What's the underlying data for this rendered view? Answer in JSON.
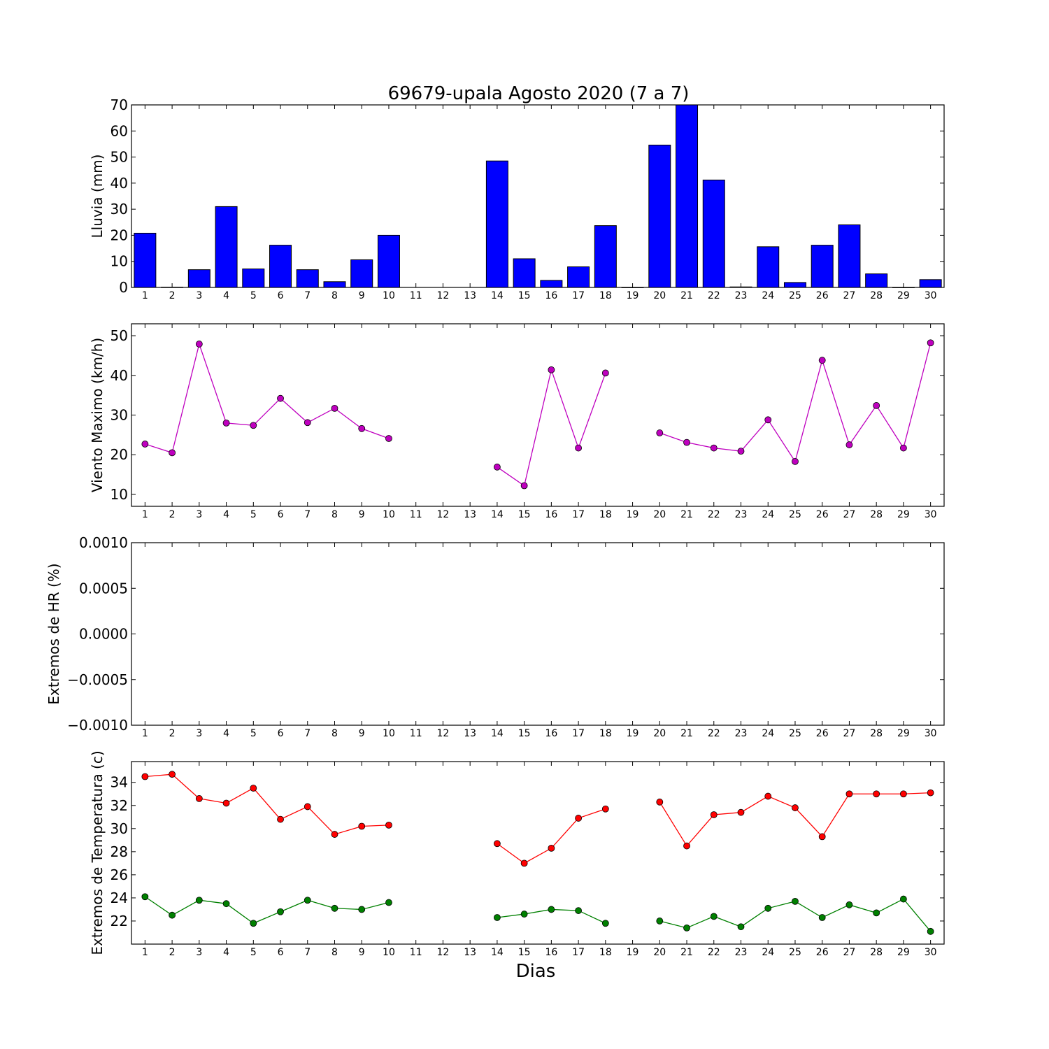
{
  "chart_data": [
    {
      "type": "bar",
      "title": "69679-upala Agosto 2020  (7 a 7)",
      "ylabel": "Lluvia (mm)",
      "xlabel": "",
      "color": "#0000ff",
      "ylim": [
        0,
        70
      ],
      "yticks": [
        "0",
        "10",
        "20",
        "30",
        "40",
        "50",
        "60",
        "70"
      ],
      "x": [
        1,
        2,
        3,
        4,
        5,
        6,
        7,
        8,
        9,
        10,
        11,
        12,
        13,
        14,
        15,
        16,
        17,
        18,
        19,
        20,
        21,
        22,
        23,
        24,
        25,
        26,
        27,
        28,
        29,
        30
      ],
      "values": [
        20.8,
        0.1,
        6.8,
        31.0,
        7.1,
        16.2,
        6.8,
        2.2,
        10.6,
        20.0,
        null,
        null,
        null,
        48.5,
        11.0,
        2.7,
        7.9,
        23.7,
        0.0,
        54.6,
        70.0,
        41.2,
        0.2,
        15.6,
        1.9,
        16.2,
        24.0,
        5.2,
        0.0,
        3.0
      ]
    },
    {
      "type": "line",
      "ylabel": "Viento Maximo (km/h)",
      "xlabel": "",
      "ylim": [
        7,
        53
      ],
      "yticks": [
        "10",
        "20",
        "30",
        "40",
        "50"
      ],
      "x": [
        1,
        2,
        3,
        4,
        5,
        6,
        7,
        8,
        9,
        10,
        11,
        12,
        13,
        14,
        15,
        16,
        17,
        18,
        19,
        20,
        21,
        22,
        23,
        24,
        25,
        26,
        27,
        28,
        29,
        30
      ],
      "series": [
        {
          "color": "#bf00bf",
          "values": [
            22.7,
            20.5,
            47.9,
            28.0,
            27.4,
            34.2,
            28.1,
            31.7,
            26.6,
            24.1,
            null,
            null,
            null,
            16.9,
            12.2,
            41.4,
            21.7,
            40.6,
            null,
            25.5,
            23.1,
            21.7,
            20.9,
            28.8,
            18.3,
            43.8,
            22.5,
            32.4,
            21.7,
            48.2
          ]
        }
      ]
    },
    {
      "type": "line",
      "ylabel": "Extremos de HR (%)",
      "xlabel": "",
      "ylim": [
        -0.001,
        0.001
      ],
      "yticks": [
        "−0.0010",
        "−0.0005",
        "0.0000",
        "0.0005",
        "0.0010"
      ],
      "x": [
        1,
        2,
        3,
        4,
        5,
        6,
        7,
        8,
        9,
        10,
        11,
        12,
        13,
        14,
        15,
        16,
        17,
        18,
        19,
        20,
        21,
        22,
        23,
        24,
        25,
        26,
        27,
        28,
        29,
        30
      ],
      "series": []
    },
    {
      "type": "line",
      "ylabel": "Extremos de Temperatura (c)",
      "xlabel": "Dias",
      "ylim": [
        20.0,
        35.8
      ],
      "yticks": [
        "22",
        "24",
        "26",
        "28",
        "30",
        "32",
        "34"
      ],
      "x": [
        1,
        2,
        3,
        4,
        5,
        6,
        7,
        8,
        9,
        10,
        11,
        12,
        13,
        14,
        15,
        16,
        17,
        18,
        19,
        20,
        21,
        22,
        23,
        24,
        25,
        26,
        27,
        28,
        29,
        30
      ],
      "series": [
        {
          "color": "#ff0000",
          "values": [
            34.5,
            34.7,
            32.6,
            32.2,
            33.5,
            30.8,
            31.9,
            29.5,
            30.2,
            30.3,
            null,
            null,
            null,
            28.7,
            27.0,
            28.3,
            30.9,
            31.7,
            null,
            32.3,
            28.5,
            31.2,
            31.4,
            32.8,
            31.8,
            29.3,
            33.0,
            33.0,
            33.0,
            33.1
          ]
        },
        {
          "color": "#008000",
          "values": [
            24.1,
            22.5,
            23.8,
            23.5,
            21.8,
            22.8,
            23.8,
            23.1,
            23.0,
            23.6,
            null,
            null,
            null,
            22.3,
            22.6,
            23.0,
            22.9,
            21.8,
            null,
            22.0,
            21.4,
            22.4,
            21.5,
            23.1,
            23.7,
            22.3,
            23.4,
            22.7,
            23.9,
            21.1
          ]
        }
      ]
    }
  ]
}
